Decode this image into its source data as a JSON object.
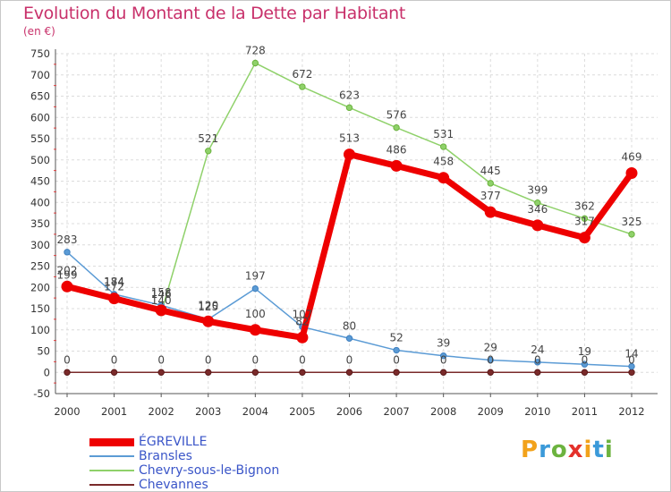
{
  "title": "Evolution du Montant de la Dette par Habitant",
  "unit": "(en €)",
  "logo": {
    "text": "Proxiti",
    "letters": [
      {
        "ch": "P",
        "color": "#f2a21b"
      },
      {
        "ch": "r",
        "color": "#3b9ad9"
      },
      {
        "ch": "o",
        "color": "#6cb33f"
      },
      {
        "ch": "x",
        "color": "#e4312b"
      },
      {
        "ch": "i",
        "color": "#f2a21b"
      },
      {
        "ch": "t",
        "color": "#3b9ad9"
      },
      {
        "ch": "i",
        "color": "#6cb33f"
      }
    ]
  },
  "chart_data": {
    "type": "line",
    "title": "Evolution du Montant de la Dette par Habitant",
    "ylabel": "(en €)",
    "xlabel": "",
    "x": [
      "2000",
      "2001",
      "2002",
      "2003",
      "2004",
      "2005",
      "2006",
      "2007",
      "2008",
      "2009",
      "2010",
      "2011",
      "2012"
    ],
    "ylim": [
      -50,
      750
    ],
    "yticks": [
      -50,
      0,
      50,
      100,
      150,
      200,
      250,
      300,
      350,
      400,
      450,
      500,
      550,
      600,
      650,
      700,
      750
    ],
    "grid": true,
    "legend_position": "bottom-left",
    "series": [
      {
        "name": "ÉGREVILLE",
        "color": "#ee0000",
        "values": [
          202,
          174,
          146,
          120,
          100,
          82,
          513,
          486,
          458,
          377,
          346,
          317,
          469
        ],
        "labels": [
          "202",
          "174",
          "146",
          "120",
          "100",
          "82",
          "513",
          "486",
          "458",
          "377",
          "346",
          "317",
          "469"
        ]
      },
      {
        "name": "Bransles",
        "color": "#5b9bd5",
        "values": [
          283,
          184,
          158,
          125,
          197,
          107,
          80,
          52,
          39,
          29,
          24,
          19,
          14
        ],
        "labels": [
          "283",
          "184",
          "158",
          "125",
          "197",
          "107",
          "80",
          "52",
          "39",
          "29",
          "24",
          "19",
          "14"
        ]
      },
      {
        "name": "Chevry-sous-le-Bignon",
        "color": "#8fd16a",
        "values": [
          199,
          172,
          140,
          521,
          728,
          672,
          623,
          576,
          531,
          445,
          399,
          362,
          325
        ],
        "labels": [
          "199",
          "172",
          "140",
          "521",
          "728",
          "672",
          "623",
          "576",
          "531",
          "445",
          "399",
          "362",
          "325"
        ]
      },
      {
        "name": "Chevannes",
        "color": "#7a2a2a",
        "values": [
          0,
          0,
          0,
          0,
          0,
          0,
          0,
          0,
          0,
          0,
          0,
          0,
          0
        ],
        "labels": [
          "0",
          "0",
          "0",
          "0",
          "0",
          "0",
          "0",
          "0",
          "0",
          "0",
          "0",
          "0",
          "0"
        ]
      }
    ]
  }
}
